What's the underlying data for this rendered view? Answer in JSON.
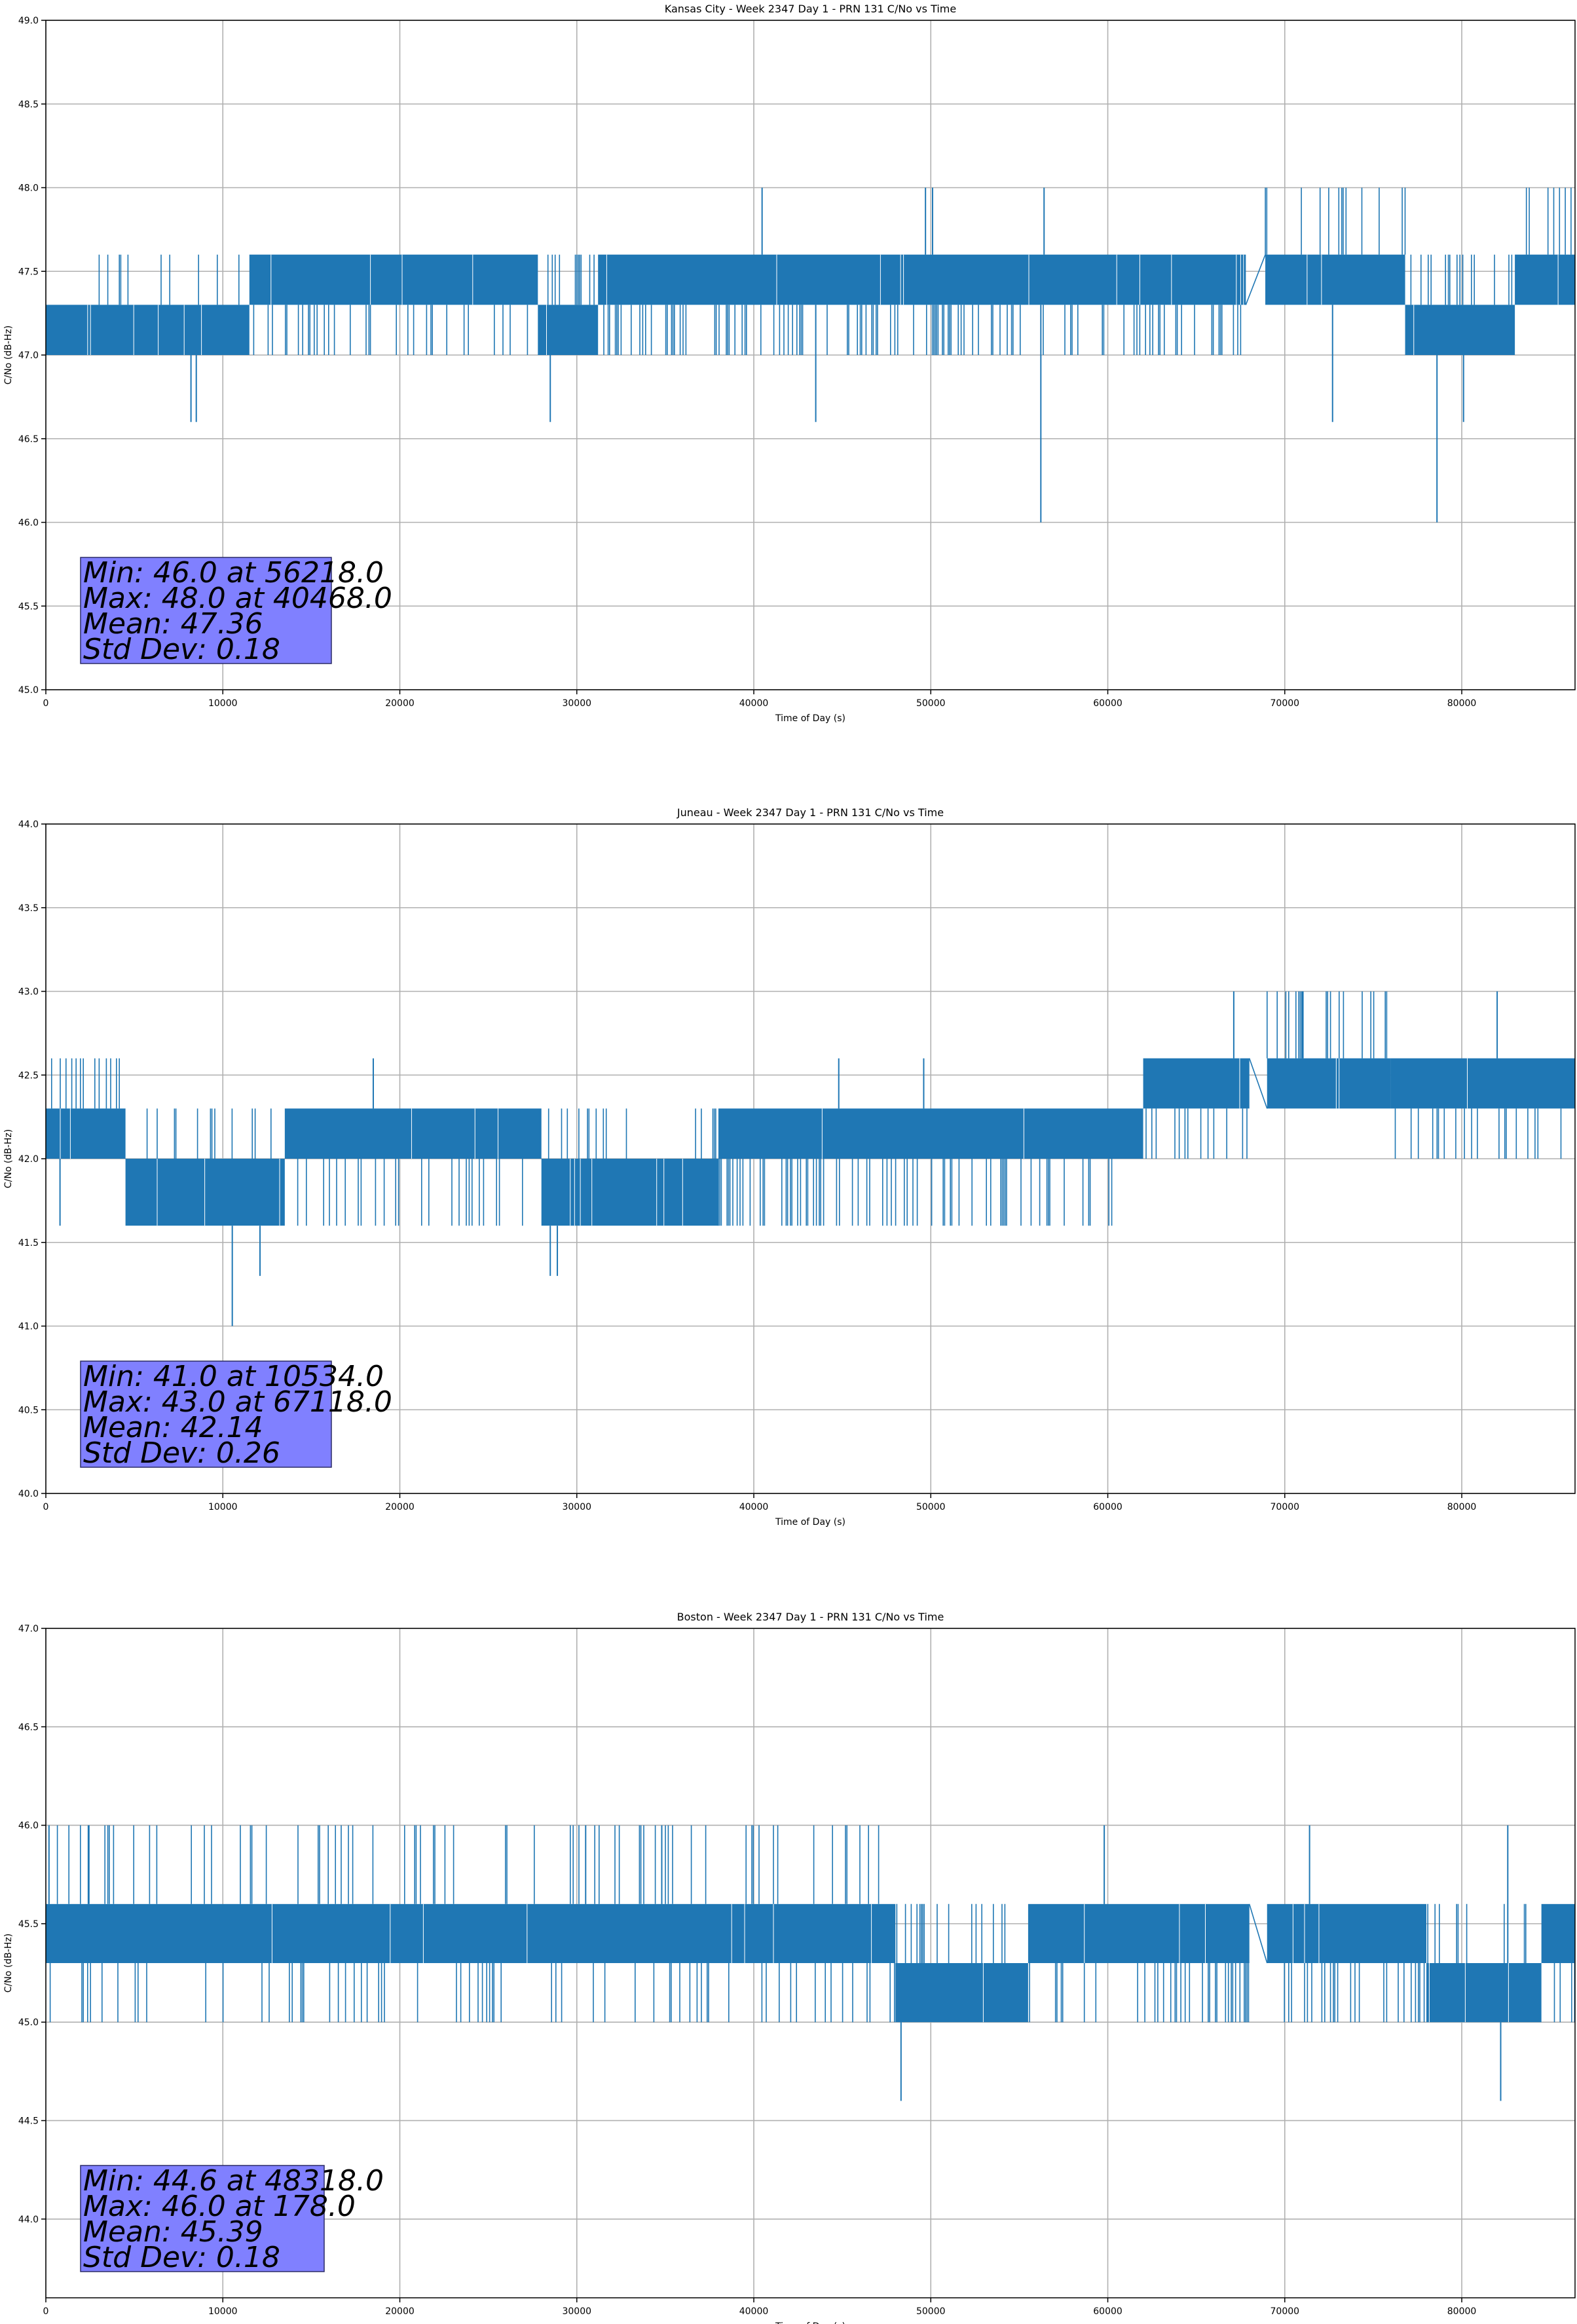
{
  "chart_data": [
    {
      "type": "line",
      "title": "Kansas City - Week 2347 Day 1 - PRN 131 C/No vs Time",
      "xlabel": "Time of Day (s)",
      "ylabel": "C/No (dB-Hz)",
      "xlim": [
        0,
        86400
      ],
      "ylim": [
        45.0,
        49.0
      ],
      "grid": true,
      "xticks": [
        "0",
        "10000",
        "20000",
        "30000",
        "40000",
        "50000",
        "60000",
        "70000",
        "80000"
      ],
      "yticks": [
        "45.0",
        "45.5",
        "46.0",
        "46.5",
        "47.0",
        "47.5",
        "48.0",
        "48.5",
        "49.0"
      ],
      "series_color": "#1f77b4",
      "segments": [
        {
          "x0": 0,
          "x1": 11500,
          "lo": 47.0,
          "hi": 47.3,
          "top": 47.6,
          "density": 0.35
        },
        {
          "x0": 11500,
          "x1": 27800,
          "lo": 47.3,
          "hi": 47.6,
          "bot": 47.0,
          "density": 0.7
        },
        {
          "x0": 27800,
          "x1": 31200,
          "lo": 47.0,
          "hi": 47.3,
          "top": 47.6,
          "density": 0.4
        },
        {
          "x0": 31200,
          "x1": 67800,
          "lo": 47.3,
          "hi": 47.6,
          "bot": 47.0,
          "density": 0.75
        },
        {
          "x0": 68900,
          "x1": 76800,
          "lo": 47.3,
          "hi": 47.6,
          "top": 48.0,
          "density": 0.45
        },
        {
          "x0": 76800,
          "x1": 83000,
          "lo": 47.0,
          "hi": 47.3,
          "top": 47.6,
          "density": 0.45
        },
        {
          "x0": 83000,
          "x1": 86400,
          "lo": 47.3,
          "hi": 47.6,
          "top": 48.0,
          "density": 0.5
        }
      ],
      "gaps": [
        [
          67800,
          47.3,
          68900,
          47.6
        ]
      ],
      "spikes": [
        {
          "x": 8200,
          "y": 46.6
        },
        {
          "x": 8500,
          "y": 46.6
        },
        {
          "x": 28500,
          "y": 46.6
        },
        {
          "x": 43500,
          "y": 46.6
        },
        {
          "x": 56218,
          "y": 46.0
        },
        {
          "x": 72700,
          "y": 46.6
        },
        {
          "x": 78600,
          "y": 46.0
        },
        {
          "x": 80100,
          "y": 46.6
        },
        {
          "x": 40468,
          "y": 48.0
        },
        {
          "x": 49700,
          "y": 48.0
        },
        {
          "x": 50100,
          "y": 48.0
        },
        {
          "x": 56400,
          "y": 48.0
        }
      ],
      "stats": {
        "min": "Min: 46.0 at 56218.0",
        "max": "Max: 48.0 at 40468.0",
        "mean": "Mean: 47.36",
        "std": "Std Dev: 0.18"
      }
    },
    {
      "type": "line",
      "title": "Juneau - Week 2347 Day 1 - PRN 131 C/No vs Time",
      "xlabel": "Time of Day (s)",
      "ylabel": "C/No (dB-Hz)",
      "xlim": [
        0,
        86400
      ],
      "ylim": [
        40.0,
        44.0
      ],
      "grid": true,
      "xticks": [
        "0",
        "10000",
        "20000",
        "30000",
        "40000",
        "50000",
        "60000",
        "70000",
        "80000"
      ],
      "yticks": [
        "40.0",
        "40.5",
        "41.0",
        "41.5",
        "42.0",
        "42.5",
        "43.0",
        "43.5",
        "44.0"
      ],
      "series_color": "#1f77b4",
      "segments": [
        {
          "x0": 0,
          "x1": 4500,
          "lo": 42.0,
          "hi": 42.3,
          "top": 42.6,
          "density": 0.7
        },
        {
          "x0": 4500,
          "x1": 13500,
          "lo": 41.6,
          "hi": 42.0,
          "top": 42.3,
          "density": 0.45
        },
        {
          "x0": 13500,
          "x1": 28000,
          "lo": 42.0,
          "hi": 42.3,
          "bot": 41.6,
          "density": 0.65
        },
        {
          "x0": 28000,
          "x1": 38000,
          "lo": 41.6,
          "hi": 42.0,
          "top": 42.3,
          "density": 0.55
        },
        {
          "x0": 38000,
          "x1": 62000,
          "lo": 42.0,
          "hi": 42.3,
          "bot": 41.6,
          "density": 0.75
        },
        {
          "x0": 62000,
          "x1": 68000,
          "lo": 42.3,
          "hi": 42.6,
          "bot": 42.0,
          "density": 0.55
        },
        {
          "x0": 69000,
          "x1": 76000,
          "lo": 42.3,
          "hi": 42.6,
          "top": 43.0,
          "density": 0.5
        },
        {
          "x0": 76000,
          "x1": 86400,
          "lo": 42.3,
          "hi": 42.6,
          "bot": 42.0,
          "density": 0.55
        }
      ],
      "gaps": [
        [
          68000,
          42.6,
          69000,
          42.3
        ]
      ],
      "spikes": [
        {
          "x": 10534,
          "y": 41.0
        },
        {
          "x": 12100,
          "y": 41.3
        },
        {
          "x": 28500,
          "y": 41.3
        },
        {
          "x": 28900,
          "y": 41.3
        },
        {
          "x": 800,
          "y": 41.6
        },
        {
          "x": 18500,
          "y": 42.6
        },
        {
          "x": 67118,
          "y": 43.0
        },
        {
          "x": 71000,
          "y": 43.0
        },
        {
          "x": 82000,
          "y": 43.0
        },
        {
          "x": 44800,
          "y": 42.6
        },
        {
          "x": 49600,
          "y": 42.6
        }
      ],
      "stats": {
        "min": "Min: 41.0 at 10534.0",
        "max": "Max: 43.0 at 67118.0",
        "mean": "Mean: 42.14",
        "std": "Std Dev: 0.26"
      }
    },
    {
      "type": "line",
      "title": "Boston - Week 2347 Day 1 - PRN 131 C/No vs Time",
      "xlabel": "Time of Day (s)",
      "ylabel": "C/No (dB-Hz)",
      "xlim": [
        0,
        86400
      ],
      "ylim": [
        43.6,
        47.0
      ],
      "grid": true,
      "xticks": [
        "0",
        "10000",
        "20000",
        "30000",
        "40000",
        "50000",
        "60000",
        "70000",
        "80000"
      ],
      "yticks": [
        "44.0",
        "44.5",
        "45.0",
        "45.5",
        "46.0",
        "46.5",
        "47.0"
      ],
      "series_color": "#1f77b4",
      "segments": [
        {
          "x0": 0,
          "x1": 48000,
          "lo": 45.3,
          "hi": 45.6,
          "bot": 45.0,
          "top": 46.0,
          "density": 0.75
        },
        {
          "x0": 48000,
          "x1": 55500,
          "lo": 45.0,
          "hi": 45.3,
          "top": 45.6,
          "density": 0.45
        },
        {
          "x0": 55500,
          "x1": 68000,
          "lo": 45.3,
          "hi": 45.6,
          "bot": 45.0,
          "density": 0.7
        },
        {
          "x0": 69000,
          "x1": 78000,
          "lo": 45.3,
          "hi": 45.6,
          "bot": 45.0,
          "density": 0.7
        },
        {
          "x0": 78000,
          "x1": 84500,
          "lo": 45.0,
          "hi": 45.3,
          "top": 45.6,
          "density": 0.6
        },
        {
          "x0": 84500,
          "x1": 86400,
          "lo": 45.3,
          "hi": 45.6,
          "bot": 45.0,
          "density": 0.5
        }
      ],
      "gaps": [
        [
          68000,
          45.6,
          69000,
          45.3
        ]
      ],
      "spikes": [
        {
          "x": 48318,
          "y": 44.6
        },
        {
          "x": 82200,
          "y": 44.6
        },
        {
          "x": 178,
          "y": 46.0
        },
        {
          "x": 2400,
          "y": 46.0
        },
        {
          "x": 30500,
          "y": 46.0
        },
        {
          "x": 34800,
          "y": 46.0
        },
        {
          "x": 59800,
          "y": 46.0
        },
        {
          "x": 71400,
          "y": 46.0
        },
        {
          "x": 82600,
          "y": 46.0
        }
      ],
      "stats": {
        "min": "Min: 44.6 at 48318.0",
        "max": "Max: 46.0 at 178.0",
        "mean": "Mean: 45.39",
        "std": "Std Dev: 0.18"
      }
    }
  ]
}
